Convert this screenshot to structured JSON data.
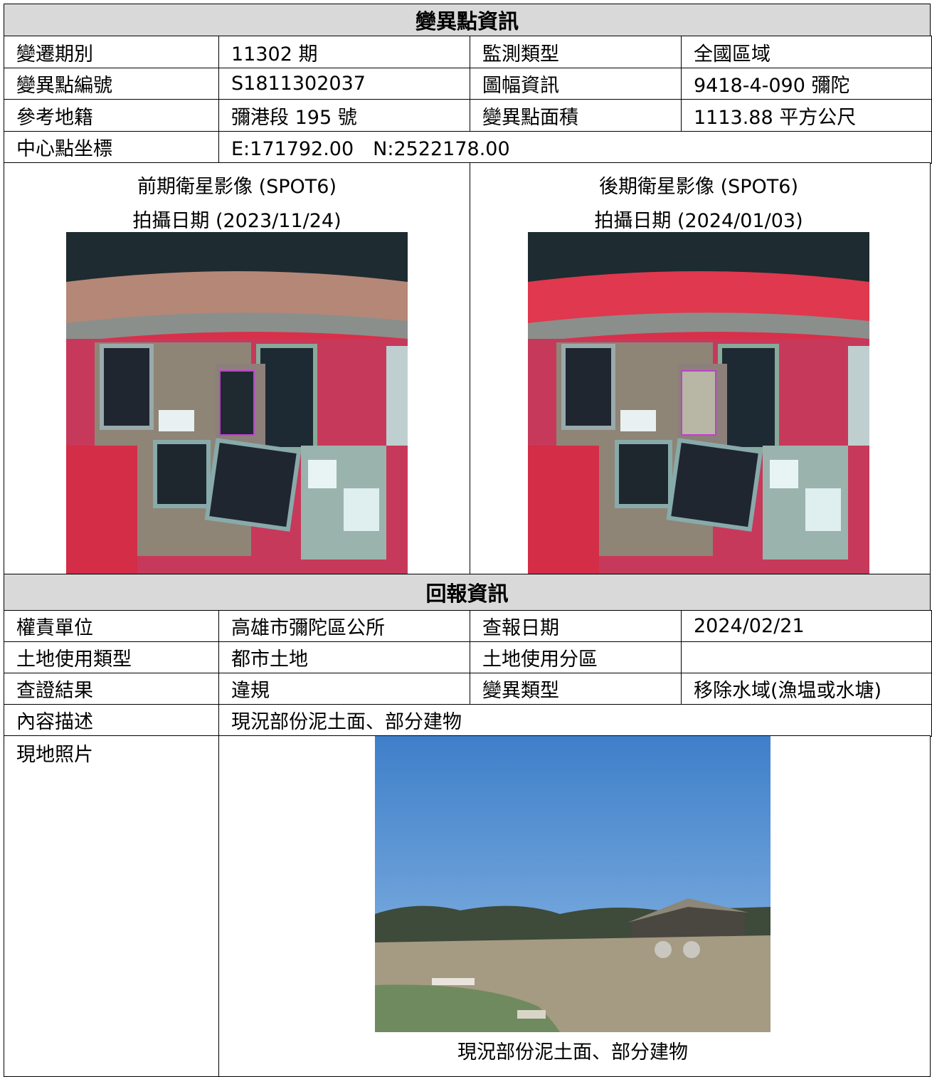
{
  "section1": {
    "title": "變異點資訊",
    "rows": [
      [
        "變遷期別",
        "11302 期",
        "監測類型",
        "全國區域"
      ],
      [
        "變異點編號",
        "S1811302037",
        "圖幅資訊",
        "9418-4-090 彌陀"
      ],
      [
        "參考地籍",
        "彌港段 195 號",
        "變異點面積",
        "1113.88 平方公尺"
      ],
      [
        "中心點坐標",
        "E:171792.00　N:2522178.00"
      ]
    ]
  },
  "images": [
    {
      "title": "前期衛星影像 (SPOT6)",
      "date": "拍攝日期 (2023/11/24)"
    },
    {
      "title": "後期衛星影像 (SPOT6)",
      "date": "拍攝日期 (2024/01/03)"
    }
  ],
  "section2": {
    "title": "回報資訊",
    "rows": [
      [
        "權責單位",
        "高雄市彌陀區公所",
        "查報日期",
        "2024/02/21"
      ],
      [
        "土地使用類型",
        "都市土地",
        "土地使用分區"
      ],
      [
        "查證結果",
        "違規",
        "變異類型",
        "移除水域(漁塭或水塘)"
      ],
      [
        "內容描述",
        "現況部份泥土面、部分建物"
      ]
    ]
  },
  "photo": {
    "label": "現地照片",
    "caption": "現況部份泥土面、部分建物"
  }
}
